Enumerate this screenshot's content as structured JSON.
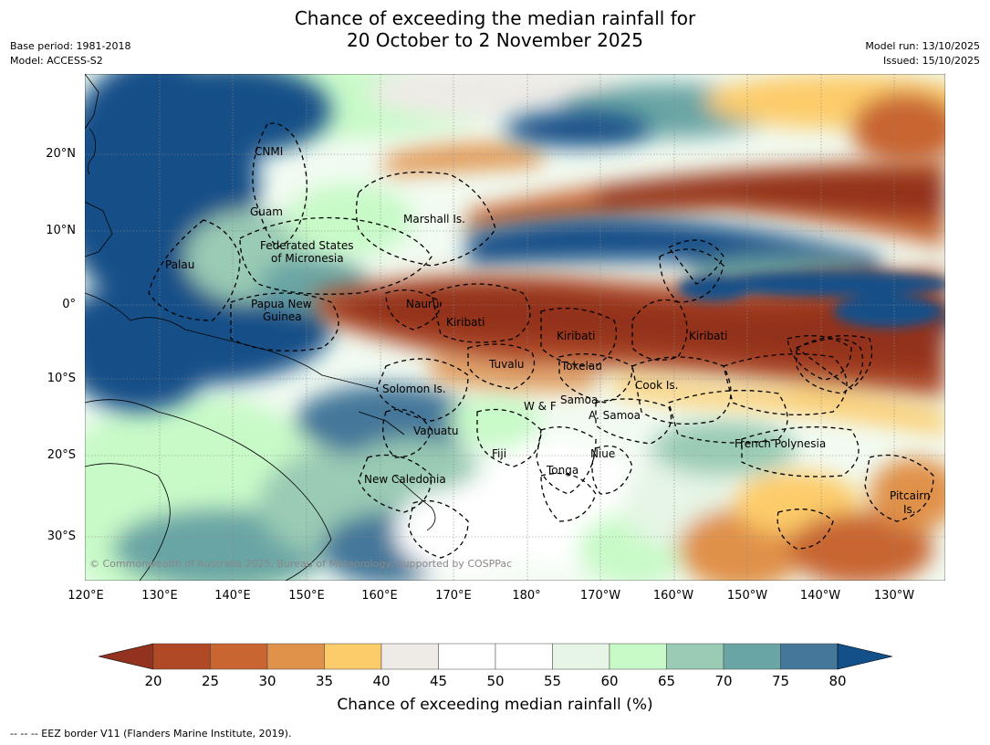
{
  "title_line1": "Chance of exceeding the median rainfall for",
  "title_line2": "20 October to 2 November 2025",
  "meta_left": [
    "Base period: 1981-2018",
    "Model: ACCESS-S2"
  ],
  "meta_right": [
    "Model run: 13/10/2025",
    "Issued: 15/10/2025"
  ],
  "lat_ticks": [
    "20°N",
    "10°N",
    "0°",
    "10°S",
    "20°S",
    "30°S"
  ],
  "lon_ticks": [
    "120°E",
    "130°E",
    "140°E",
    "150°E",
    "160°E",
    "170°E",
    "180°",
    "170°W",
    "160°W",
    "150°W",
    "140°W",
    "130°W"
  ],
  "regions": {
    "cnmi": "CNMI",
    "guam": "Guam",
    "marshall": "Marshall Is.",
    "fsm_1": "Federated States",
    "fsm_2": "of Micronesia",
    "palau": "Palau",
    "png_1": "Papua New",
    "png_2": "Guinea",
    "nauru": "Nauru",
    "kiribati_w": "Kiribati",
    "kiribati_c": "Kiribati",
    "kiribati_e": "Kiribati",
    "tuvalu": "Tuvalu",
    "tokelau": "Tokelau",
    "cook": "Cook Is.",
    "solomon": "Solomon Is.",
    "samoa": "Samoa",
    "wf": "W & F",
    "asamoa": "A. Samoa",
    "vanuatu": "Vanuatu",
    "fiji": "Fiji",
    "niue": "Niue",
    "tonga": "Tonga",
    "frpoly": "French Polynesia",
    "newcal": "New Caledonia",
    "pitcairn_1": "Pitcairn",
    "pitcairn_2": "Is."
  },
  "copyright": "© Commonwealth of Australia 2025, Bureau of Meteorology, supported by COSPPac",
  "colorbar": {
    "ticks": [
      "20",
      "25",
      "30",
      "35",
      "40",
      "45",
      "50",
      "55",
      "60",
      "65",
      "70",
      "75",
      "80"
    ],
    "colors": [
      "#93331f",
      "#b04a26",
      "#c86530",
      "#e0914a",
      "#fdcc6a",
      "#eeebe6",
      "#ffffff",
      "#ffffff",
      "#e6f5e6",
      "#c8fac8",
      "#9acbb4",
      "#6aa5a5",
      "#44779a",
      "#134f88"
    ],
    "label": "Chance of exceeding median rainfall (%)"
  },
  "footnote": "--  --  -- EEZ border V11 (Flanders Marine Institute, 2019)."
}
